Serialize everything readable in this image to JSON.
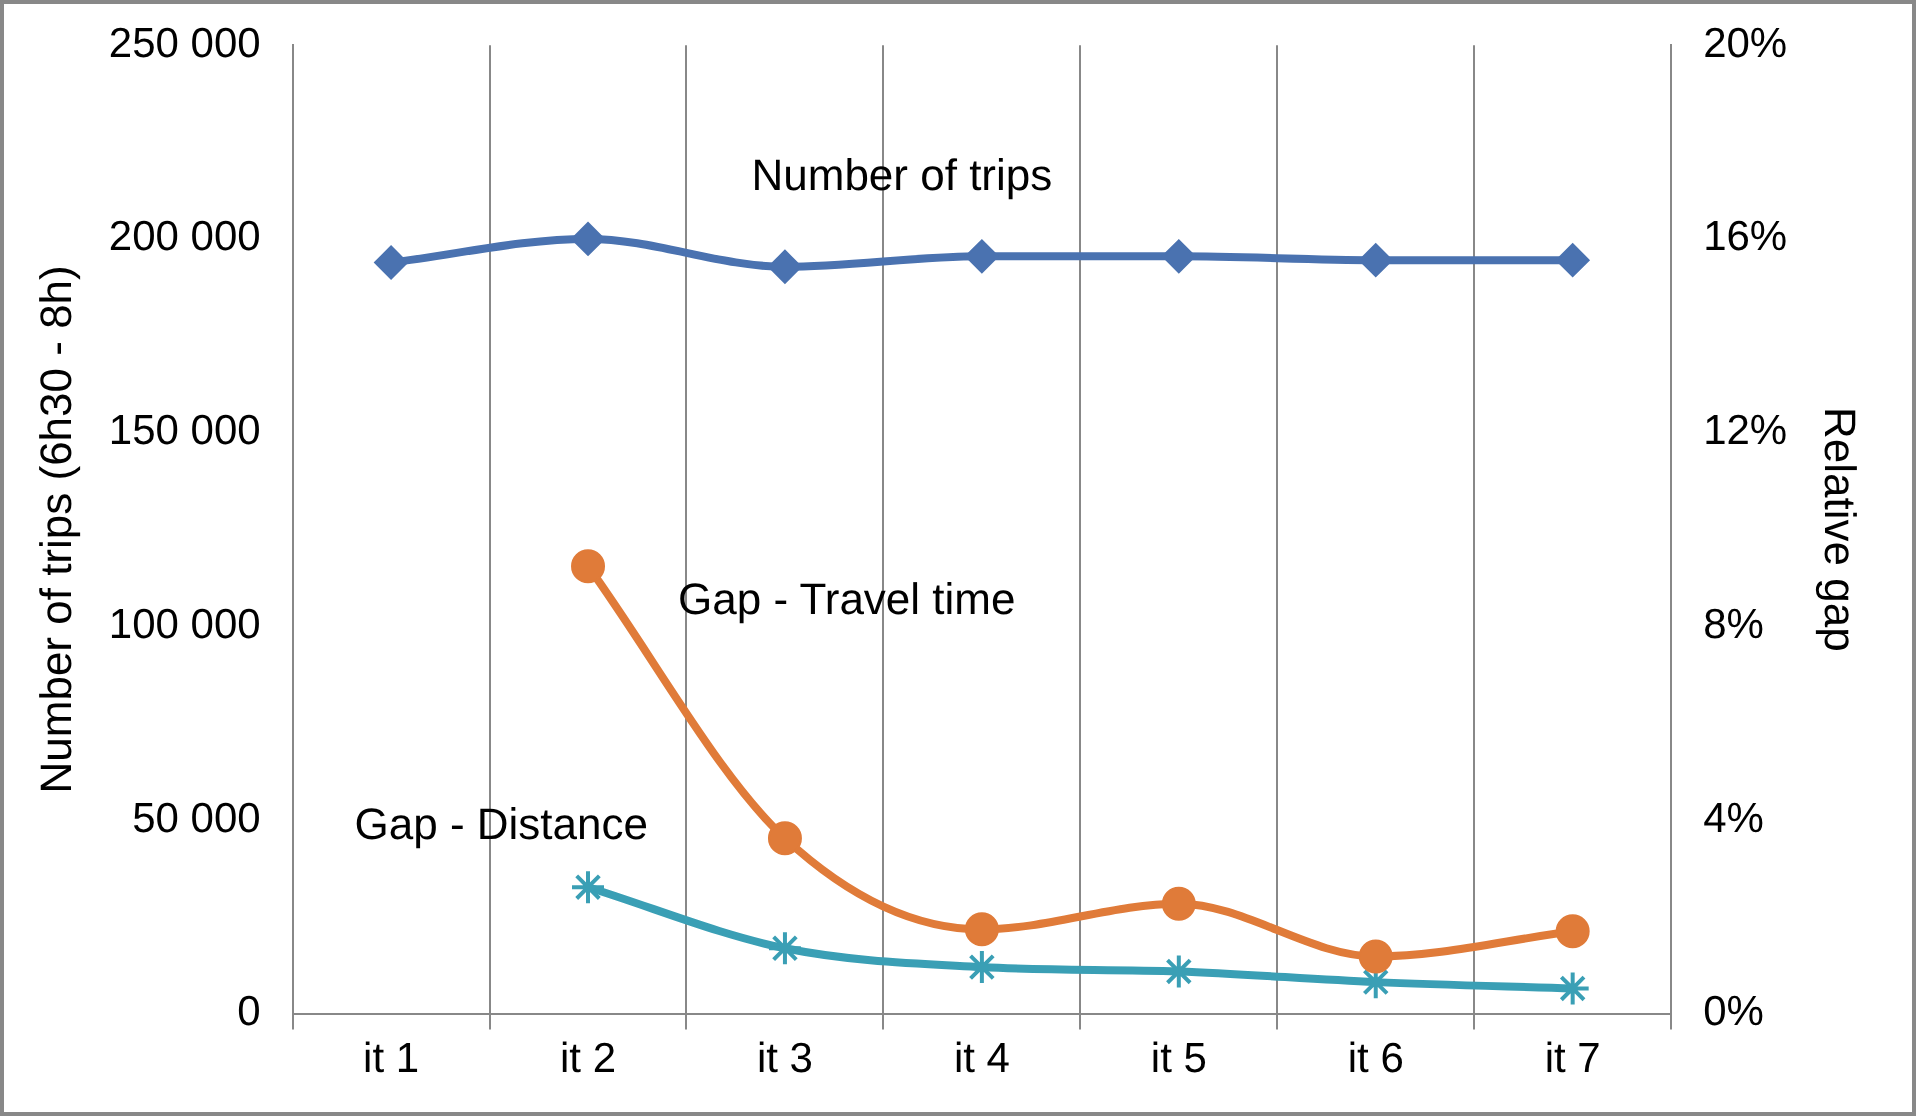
{
  "chart_data": {
    "type": "line",
    "ylabel": "Number of trips (6h30 - 8h)",
    "y2label": "Relative gap",
    "categories": [
      "it 1",
      "it 2",
      "it 3",
      "it 4",
      "it 5",
      "it 6",
      "it 7"
    ],
    "series": [
      {
        "name": "Number of trips",
        "color": "#4a72b0",
        "marker": "diamond",
        "values": [
          193900,
          200000,
          192800,
          195500,
          195500,
          194500,
          194500
        ]
      },
      {
        "name": "Gap - Travel time",
        "color": "#e07b39",
        "marker": "circle",
        "axis": "y2",
        "values": [
          null,
          9.24,
          3.62,
          1.74,
          2.27,
          1.18,
          1.7
        ]
      },
      {
        "name": "Gap - Distance",
        "color": "#3a9fb5",
        "marker": "cross",
        "axis": "y2",
        "values": [
          null,
          2.61,
          1.35,
          0.96,
          0.87,
          0.65,
          0.52
        ]
      }
    ],
    "ylim": [
      0,
      250000
    ],
    "yticks": [
      {
        "value": 0,
        "label": "0"
      },
      {
        "value": 50000,
        "label": "50 000"
      },
      {
        "value": 100000,
        "label": "100 000"
      },
      {
        "value": 150000,
        "label": "150 000"
      },
      {
        "value": 200000,
        "label": "200 000"
      },
      {
        "value": 250000,
        "label": "250 000"
      }
    ],
    "y2lim": [
      0,
      20
    ],
    "y2ticks": [
      {
        "value": 0,
        "label": "0%"
      },
      {
        "value": 4,
        "label": "4%"
      },
      {
        "value": 8,
        "label": "8%"
      },
      {
        "value": 12,
        "label": "12%"
      },
      {
        "value": 16,
        "label": "16%"
      },
      {
        "value": 20,
        "label": "20%"
      }
    ],
    "grid": "x",
    "legend": false
  }
}
